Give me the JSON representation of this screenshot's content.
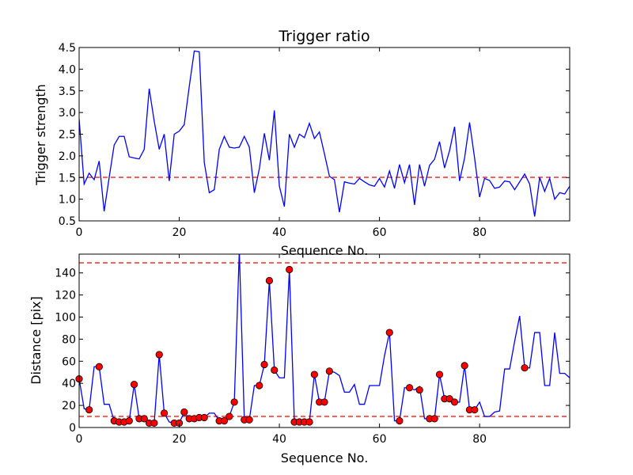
{
  "chart_data": [
    {
      "type": "line",
      "title": "Trigger ratio",
      "xlabel": "Sequence No.",
      "ylabel": "Trigger strength",
      "xlim": [
        0,
        98
      ],
      "ylim": [
        0.5,
        4.5
      ],
      "xticks": [
        0,
        20,
        40,
        60,
        80
      ],
      "yticks": [
        0.5,
        1.0,
        1.5,
        2.0,
        2.5,
        3.0,
        3.5,
        4.0,
        4.5
      ],
      "ytick_labels": [
        "0.5",
        "1.0",
        "1.5",
        "2.0",
        "2.5",
        "3.0",
        "3.5",
        "4.0",
        "4.5"
      ],
      "grid": false,
      "line_color": "#0000ff",
      "threshold": {
        "y": 1.5,
        "color": "#ff0000",
        "style": "dashed"
      },
      "series": [
        {
          "x": [
            0,
            1,
            2,
            3,
            4,
            5,
            6,
            7,
            8,
            9,
            10,
            11,
            12,
            13,
            14,
            15,
            16,
            17,
            18,
            19,
            20,
            21,
            22,
            23,
            24,
            25,
            26,
            27,
            28,
            29,
            30,
            31,
            32,
            33,
            34,
            35,
            36,
            37,
            38,
            39,
            40,
            41,
            42,
            43,
            44,
            45,
            46,
            47,
            48,
            49,
            50,
            51,
            52,
            53,
            54,
            55,
            56,
            57,
            58,
            59,
            60,
            61,
            62,
            63,
            64,
            65,
            66,
            67,
            68,
            69,
            70,
            71,
            72,
            73,
            74,
            75,
            76,
            77,
            78,
            79,
            80,
            81,
            82,
            83,
            84,
            85,
            86,
            87,
            88,
            89,
            90,
            91,
            92,
            93,
            94,
            95,
            96,
            97,
            98
          ],
          "values": [
            2.85,
            1.35,
            1.6,
            1.45,
            1.88,
            0.72,
            1.5,
            2.25,
            2.45,
            2.45,
            1.98,
            1.95,
            1.93,
            2.15,
            3.55,
            2.8,
            2.15,
            2.5,
            1.42,
            2.5,
            2.57,
            2.72,
            3.6,
            4.42,
            4.4,
            1.85,
            1.15,
            1.22,
            2.15,
            2.45,
            2.2,
            2.18,
            2.2,
            2.45,
            2.2,
            1.15,
            1.7,
            2.52,
            1.9,
            3.05,
            1.3,
            0.83,
            2.5,
            2.2,
            2.5,
            2.42,
            2.75,
            2.4,
            2.55,
            2.05,
            1.53,
            1.45,
            0.7,
            1.4,
            1.37,
            1.35,
            1.48,
            1.4,
            1.33,
            1.3,
            1.48,
            1.28,
            1.65,
            1.25,
            1.8,
            1.38,
            1.8,
            0.87,
            1.8,
            1.3,
            1.78,
            1.92,
            2.33,
            1.72,
            2.12,
            2.67,
            1.42,
            1.95,
            2.77,
            1.95,
            1.05,
            1.48,
            1.43,
            1.25,
            1.28,
            1.42,
            1.4,
            1.22,
            1.4,
            1.58,
            1.35,
            0.6,
            1.5,
            1.18,
            1.48,
            1.0,
            1.15,
            1.12,
            1.3
          ]
        }
      ]
    },
    {
      "type": "line",
      "title": "",
      "xlabel": "Sequence No.",
      "ylabel": "Distance [pix]",
      "xlim": [
        0,
        98
      ],
      "ylim": [
        0,
        157
      ],
      "xticks": [
        0,
        20,
        40,
        60,
        80
      ],
      "yticks": [
        0,
        20,
        40,
        60,
        80,
        100,
        120,
        140
      ],
      "grid": false,
      "line_color": "#0000ff",
      "marker_color": "#ff0000",
      "thresholds": [
        {
          "y": 150,
          "color": "#ff0000",
          "style": "dashed"
        },
        {
          "y": 10,
          "color": "#ff0000",
          "style": "dashed"
        }
      ],
      "series": [
        {
          "x": [
            0,
            1,
            2,
            3,
            4,
            5,
            6,
            7,
            8,
            9,
            10,
            11,
            12,
            13,
            14,
            15,
            16,
            17,
            18,
            19,
            20,
            21,
            22,
            23,
            24,
            25,
            26,
            27,
            28,
            29,
            30,
            31,
            32,
            33,
            34,
            35,
            36,
            37,
            38,
            39,
            40,
            41,
            42,
            43,
            44,
            45,
            46,
            47,
            48,
            49,
            50,
            51,
            52,
            53,
            54,
            55,
            56,
            57,
            58,
            59,
            60,
            61,
            62,
            63,
            64,
            65,
            66,
            67,
            68,
            69,
            70,
            71,
            72,
            73,
            74,
            75,
            76,
            77,
            78,
            79,
            80,
            81,
            82,
            83,
            84,
            85,
            86,
            87,
            88,
            89,
            90,
            91,
            92,
            93,
            94,
            95,
            96,
            97,
            98
          ],
          "values": [
            44,
            17,
            16,
            55,
            55,
            21,
            21,
            6,
            5,
            5,
            6,
            39,
            8,
            8,
            4,
            4,
            66,
            13,
            5,
            4,
            4,
            14,
            8,
            8,
            9,
            9,
            13,
            13,
            6,
            6,
            10,
            23,
            160,
            7,
            7,
            38,
            38,
            57,
            133,
            52,
            45,
            45,
            143,
            5,
            5,
            5,
            5,
            48,
            23,
            23,
            51,
            50,
            47,
            32,
            32,
            39,
            21,
            21,
            38,
            38,
            38,
            65,
            86,
            6,
            6,
            36,
            36,
            34,
            37,
            8,
            8,
            8,
            48,
            26,
            26,
            23,
            23,
            56,
            16,
            16,
            23,
            10,
            10,
            14,
            15,
            53,
            53,
            78,
            101,
            54,
            54,
            86,
            86,
            38,
            38,
            86,
            49,
            49,
            45
          ]
        }
      ],
      "markers": {
        "x": [
          0,
          2,
          4,
          7,
          8,
          9,
          10,
          11,
          12,
          13,
          14,
          15,
          16,
          17,
          19,
          20,
          21,
          22,
          23,
          24,
          25,
          28,
          29,
          30,
          31,
          33,
          34,
          36,
          37,
          38,
          39,
          42,
          43,
          44,
          45,
          46,
          47,
          48,
          49,
          50,
          62,
          64,
          66,
          68,
          70,
          71,
          72,
          73,
          74,
          75,
          77,
          78,
          79,
          89
        ],
        "values": [
          44,
          16,
          55,
          6,
          5,
          5,
          6,
          39,
          8,
          8,
          4,
          4,
          66,
          13,
          4,
          4,
          14,
          8,
          8,
          9,
          9,
          6,
          6,
          10,
          23,
          7,
          7,
          38,
          57,
          133,
          52,
          143,
          5,
          5,
          5,
          5,
          48,
          23,
          23,
          51,
          86,
          6,
          36,
          34,
          8,
          8,
          48,
          26,
          26,
          23,
          56,
          16,
          16,
          54
        ]
      }
    }
  ]
}
